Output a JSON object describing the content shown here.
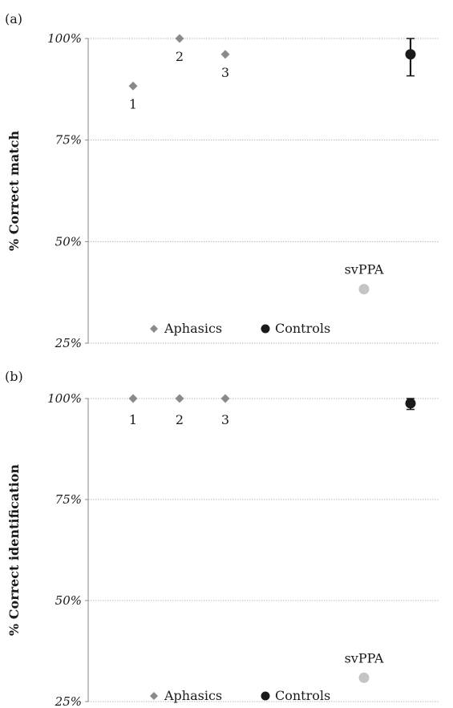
{
  "chart_data": [
    {
      "type": "scatter",
      "panel_label": "(a)",
      "ylabel": "% Correct match",
      "ylim": [
        25,
        100
      ],
      "yticks": [
        25,
        50,
        75,
        100
      ],
      "ytick_labels": [
        "25%",
        "50%",
        "75%",
        "100%"
      ],
      "grid": true,
      "legend_position": "bottom-left",
      "series": [
        {
          "name": "Aphasics",
          "marker": "diamond",
          "color": "#8a8a8a",
          "points": [
            {
              "label": "1",
              "y": 88.3
            },
            {
              "label": "2",
              "y": 100
            },
            {
              "label": "3",
              "y": 96.1
            }
          ]
        },
        {
          "name": "Controls",
          "marker": "circle",
          "color": "#1a1a1a",
          "points": [
            {
              "label": "",
              "y": 96.1,
              "err_low": 90.8,
              "err_high": 100
            }
          ]
        },
        {
          "name": "svPPA",
          "marker": "circle",
          "color": "#c4c4c4",
          "points": [
            {
              "label": "svPPA",
              "y": 38.3
            }
          ]
        }
      ],
      "legend": [
        "Aphasics",
        "Controls"
      ]
    },
    {
      "type": "scatter",
      "panel_label": "(b)",
      "ylabel": "% Correct identification",
      "ylim": [
        25,
        100
      ],
      "yticks": [
        25,
        50,
        75,
        100
      ],
      "ytick_labels": [
        "25%",
        "50%",
        "75%",
        "100%"
      ],
      "grid": true,
      "legend_position": "bottom-left",
      "series": [
        {
          "name": "Aphasics",
          "marker": "diamond",
          "color": "#8a8a8a",
          "points": [
            {
              "label": "1",
              "y": 100
            },
            {
              "label": "2",
              "y": 100
            },
            {
              "label": "3",
              "y": 100
            }
          ]
        },
        {
          "name": "Controls",
          "marker": "circle",
          "color": "#1a1a1a",
          "points": [
            {
              "label": "",
              "y": 98.8,
              "err_low": 97.3,
              "err_high": 100
            }
          ]
        },
        {
          "name": "svPPA",
          "marker": "circle",
          "color": "#c4c4c4",
          "points": [
            {
              "label": "svPPA",
              "y": 30.9
            }
          ]
        }
      ],
      "legend": [
        "Aphasics",
        "Controls"
      ]
    }
  ]
}
